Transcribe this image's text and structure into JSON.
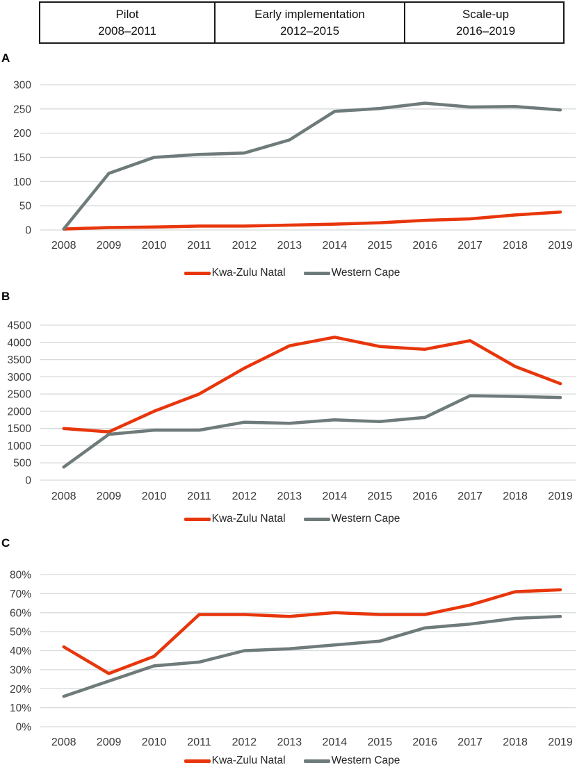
{
  "phase_table": {
    "columns": [
      {
        "phase": "Pilot",
        "years": "2008–2011"
      },
      {
        "phase": "Early implementation",
        "years": "2012–2015"
      },
      {
        "phase": "Scale-up",
        "years": "2016–2019"
      }
    ]
  },
  "panels": [
    {
      "label": "A"
    },
    {
      "label": "B"
    },
    {
      "label": "C"
    }
  ],
  "legend": {
    "series1": "Kwa-Zulu Natal",
    "series2": "Western Cape"
  },
  "colors": {
    "kzn_red": "#e8360c",
    "wc_gray": "#6e7b7a",
    "gridline": "#d6dada",
    "tick_text": "#3a3a3a"
  },
  "chart_data": [
    {
      "id": "A",
      "type": "line",
      "title": "",
      "x": [
        2008,
        2009,
        2010,
        2011,
        2012,
        2013,
        2014,
        2015,
        2016,
        2017,
        2018,
        2019
      ],
      "series": [
        {
          "name": "Kwa-Zulu Natal",
          "color": "#e8360c",
          "values": [
            2,
            5,
            6,
            8,
            8,
            10,
            12,
            15,
            20,
            23,
            31,
            37
          ]
        },
        {
          "name": "Western Cape",
          "color": "#6e7b7a",
          "values": [
            2,
            117,
            150,
            156,
            159,
            186,
            245,
            251,
            262,
            254,
            255,
            248
          ]
        }
      ],
      "ylim": [
        0,
        300
      ],
      "ystep": 50,
      "yformat": "number",
      "grid": true,
      "legend_position": "bottom"
    },
    {
      "id": "B",
      "type": "line",
      "title": "",
      "x": [
        2008,
        2009,
        2010,
        2011,
        2012,
        2013,
        2014,
        2015,
        2016,
        2017,
        2018,
        2019
      ],
      "series": [
        {
          "name": "Kwa-Zulu Natal",
          "color": "#e8360c",
          "values": [
            1500,
            1400,
            2000,
            2500,
            3250,
            3900,
            4150,
            3880,
            3800,
            4050,
            3300,
            2800
          ]
        },
        {
          "name": "Western Cape",
          "color": "#6e7b7a",
          "values": [
            380,
            1330,
            1450,
            1450,
            1680,
            1650,
            1750,
            1700,
            1820,
            2450,
            2430,
            2400
          ]
        }
      ],
      "ylim": [
        0,
        4500
      ],
      "ystep": 500,
      "yformat": "number",
      "grid": true,
      "legend_position": "bottom"
    },
    {
      "id": "C",
      "type": "line",
      "title": "",
      "x": [
        2008,
        2009,
        2010,
        2011,
        2012,
        2013,
        2014,
        2015,
        2016,
        2017,
        2018,
        2019
      ],
      "series": [
        {
          "name": "Kwa-Zulu Natal",
          "color": "#e8360c",
          "values": [
            42,
            28,
            37,
            59,
            59,
            58,
            60,
            59,
            59,
            64,
            71,
            72
          ]
        },
        {
          "name": "Western Cape",
          "color": "#6e7b7a",
          "values": [
            16,
            24,
            32,
            34,
            40,
            41,
            43,
            45,
            52,
            54,
            57,
            58
          ]
        }
      ],
      "ylim": [
        0,
        80
      ],
      "ystep": 10,
      "yformat": "percent",
      "grid": true,
      "legend_position": "bottom"
    }
  ]
}
